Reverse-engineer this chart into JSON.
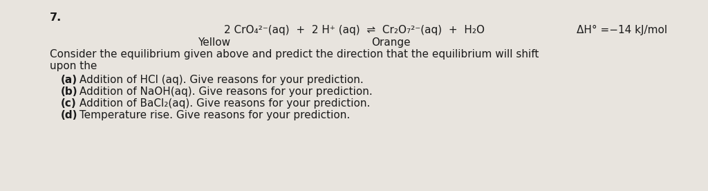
{
  "background_color": "#e8e4de",
  "text_color": "#1a1a1a",
  "fig_width": 10.24,
  "fig_height": 2.76,
  "dpi": 100,
  "number": "7.",
  "equation": "2 CrO₄²⁻(aq)  +  2 H⁺ (aq)  ⇌  Cr₂O₇²⁻(aq)  +  H₂O",
  "delta_h": "ΔH° =−14 kJ/mol",
  "yellow_label": "Yellow",
  "orange_label": "Orange",
  "consider_line1": "Consider the equilibrium given above and predict the direction that the equilibrium will shift",
  "consider_line2": "upon the",
  "item_a_bold": "(a)",
  "item_a_rest": " Addition of HCl (aq). Give reasons for your prediction.",
  "item_b_bold": "(b)",
  "item_b_rest": " Addition of NaOH(aq). Give reasons for your prediction.",
  "item_c_bold": "(c)",
  "item_c_rest": " Addition of BaCl₂(aq). Give reasons for your prediction.",
  "item_d_bold": "(d)",
  "item_d_rest": " Temperature rise. Give reasons for your prediction."
}
